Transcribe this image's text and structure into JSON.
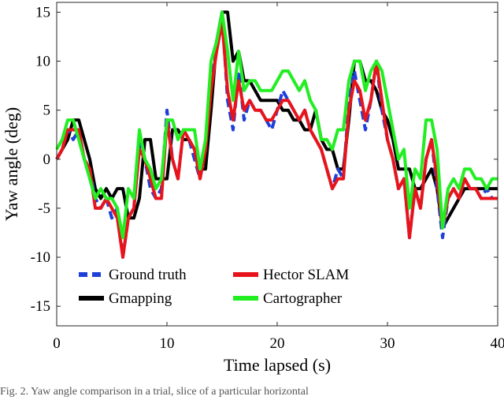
{
  "caption": "Fig. 2. Yaw angle comparison in a trial, slice of a particular horizontal",
  "chart_data": {
    "type": "line",
    "xlabel": "Time lapsed (s)",
    "ylabel": "Yaw angle (deg)",
    "xlim": [
      0,
      40
    ],
    "ylim": [
      -17,
      16
    ],
    "xticks": [
      0,
      10,
      20,
      30,
      40
    ],
    "yticks": [
      -15,
      -10,
      -5,
      0,
      5,
      10,
      15
    ],
    "grid": false,
    "legend_position": "bottom-left",
    "legend_columns": 2,
    "series": [
      {
        "name": "Ground truth",
        "color": "#1f3fd9",
        "dash": "dashed",
        "x": [
          0,
          0.5,
          1,
          1.5,
          2,
          2.5,
          3,
          3.5,
          4,
          4.5,
          5,
          5.5,
          6,
          6.5,
          7,
          7.5,
          8,
          8.5,
          9,
          9.5,
          10,
          10.5,
          11,
          11.5,
          12,
          12.5,
          13,
          13.5,
          14,
          14.5,
          15,
          15.5,
          16,
          16.5,
          17,
          17.5,
          18,
          18.5,
          19,
          19.5,
          20,
          20.5,
          21,
          21.5,
          22,
          22.5,
          23,
          23.5,
          24,
          24.5,
          25,
          25.5,
          26,
          26.5,
          27,
          27.5,
          28,
          28.5,
          29,
          29.5,
          30,
          30.5,
          31,
          31.5,
          32,
          32.5,
          33,
          33.5,
          34,
          34.5,
          35,
          35.5,
          36,
          36.5,
          37,
          37.5,
          38,
          38.5,
          39,
          39.5,
          40
        ],
        "y": [
          0,
          1,
          3,
          2,
          3,
          0,
          -1,
          -4,
          -5,
          -4,
          -6,
          -5,
          -10,
          -6,
          -5,
          2,
          0,
          -3,
          -4,
          -3,
          5,
          0,
          -2,
          3,
          2,
          0,
          -2,
          1,
          8,
          11,
          15,
          6,
          3,
          9,
          4,
          6,
          5,
          5,
          4,
          3,
          5,
          7,
          6,
          5,
          4,
          5,
          3,
          2,
          1,
          -1,
          -3,
          -1,
          -2,
          6,
          9,
          6,
          3,
          6,
          10,
          5,
          2,
          0,
          -3,
          -2,
          -8,
          -3,
          -5,
          0,
          2,
          -3,
          -8,
          -4,
          -3,
          -4,
          -2,
          -3,
          -3,
          -4,
          -3,
          -4,
          -4
        ]
      },
      {
        "name": "Gmapping",
        "color": "#000000",
        "dash": "solid",
        "x": [
          0,
          0.5,
          1,
          1.5,
          2,
          2.5,
          3,
          3.5,
          4,
          4.5,
          5,
          5.5,
          6,
          6.5,
          7,
          7.5,
          8,
          8.5,
          9,
          9.5,
          10,
          10.5,
          11,
          11.5,
          12,
          12.5,
          13,
          13.5,
          14,
          14.5,
          15,
          15.5,
          16,
          16.5,
          17,
          17.5,
          18,
          18.5,
          19,
          19.5,
          20,
          20.5,
          21,
          21.5,
          22,
          22.5,
          23,
          23.5,
          24,
          24.5,
          25,
          25.5,
          26,
          26.5,
          27,
          27.5,
          28,
          28.5,
          29,
          29.5,
          30,
          30.5,
          31,
          31.5,
          32,
          32.5,
          33,
          33.5,
          34,
          34.5,
          35,
          35.5,
          36,
          36.5,
          37,
          37.5,
          38,
          38.5,
          39,
          39.5,
          40
        ],
        "y": [
          0,
          1,
          2,
          4,
          4,
          2,
          0,
          -3,
          -4,
          -3,
          -4,
          -3,
          -3,
          -6,
          -6,
          -4,
          2,
          2,
          -2,
          -2,
          -2,
          3,
          3,
          2,
          2,
          1,
          -1,
          -1,
          5,
          12,
          15,
          15,
          10,
          11,
          8,
          8,
          7,
          6,
          6,
          6,
          6,
          5,
          5,
          4,
          4,
          3,
          3,
          5,
          2,
          1,
          1,
          -1,
          -1,
          4,
          10,
          10,
          8,
          8,
          7,
          5,
          4,
          2,
          -1,
          -1,
          -1,
          -3,
          -3,
          -2,
          -1,
          -3,
          -7,
          -6,
          -5,
          -4,
          -3,
          -3,
          -3,
          -3,
          -3,
          -3,
          -3
        ]
      },
      {
        "name": "Hector SLAM",
        "color": "#e8141b",
        "dash": "solid",
        "x": [
          0,
          0.5,
          1,
          1.5,
          2,
          2.5,
          3,
          3.5,
          4,
          4.5,
          5,
          5.5,
          6,
          6.5,
          7,
          7.5,
          8,
          8.5,
          9,
          9.5,
          10,
          10.5,
          11,
          11.5,
          12,
          12.5,
          13,
          13.5,
          14,
          14.5,
          15,
          15.5,
          16,
          16.5,
          17,
          17.5,
          18,
          18.5,
          19,
          19.5,
          20,
          20.5,
          21,
          21.5,
          22,
          22.5,
          23,
          23.5,
          24,
          24.5,
          25,
          25.5,
          26,
          26.5,
          27,
          27.5,
          28,
          28.5,
          29,
          29.5,
          30,
          30.5,
          31,
          31.5,
          32,
          32.5,
          33,
          33.5,
          34,
          34.5,
          35,
          35.5,
          36,
          36.5,
          37,
          37.5,
          38,
          38.5,
          39,
          39.5,
          40
        ],
        "y": [
          0,
          1,
          3,
          3,
          3,
          0,
          -1,
          -5,
          -5,
          -4,
          -5,
          -6,
          -10,
          -6,
          -5,
          1,
          0,
          -2,
          -4,
          -4,
          4,
          0,
          -2,
          3,
          2,
          1,
          -2,
          1,
          7,
          11,
          14,
          7,
          4,
          8,
          5,
          6,
          5,
          5,
          4,
          4,
          5,
          6,
          6,
          5,
          4,
          5,
          3,
          2,
          1,
          -1,
          -3,
          -2,
          -2,
          5,
          8,
          7,
          4,
          6,
          10,
          6,
          2,
          0,
          -3,
          -2,
          -8,
          -3,
          -5,
          0,
          2,
          -2,
          -7,
          -4,
          -3,
          -4,
          -2,
          -3,
          -3,
          -4,
          -4,
          -4,
          -4
        ]
      },
      {
        "name": "Cartographer",
        "color": "#22ee22",
        "dash": "solid",
        "x": [
          0,
          0.5,
          1,
          1.5,
          2,
          2.5,
          3,
          3.5,
          4,
          4.5,
          5,
          5.5,
          6,
          6.5,
          7,
          7.5,
          8,
          8.5,
          9,
          9.5,
          10,
          10.5,
          11,
          11.5,
          12,
          12.5,
          13,
          13.5,
          14,
          14.5,
          15,
          15.5,
          16,
          16.5,
          17,
          17.5,
          18,
          18.5,
          19,
          19.5,
          20,
          20.5,
          21,
          21.5,
          22,
          22.5,
          23,
          23.5,
          24,
          24.5,
          25,
          25.5,
          26,
          26.5,
          27,
          27.5,
          28,
          28.5,
          29,
          29.5,
          30,
          30.5,
          31,
          31.5,
          32,
          32.5,
          33,
          33.5,
          34,
          34.5,
          35,
          35.5,
          36,
          36.5,
          37,
          37.5,
          38,
          38.5,
          39,
          39.5,
          40
        ],
        "y": [
          1,
          2,
          4,
          4,
          2,
          0,
          -2,
          -4,
          -3,
          -4,
          -4,
          -5,
          -8,
          -3,
          -4,
          3,
          0,
          -1,
          -3,
          -2,
          4,
          4,
          2,
          3,
          3,
          3,
          -1,
          2,
          10,
          12,
          15,
          11,
          6,
          11,
          7,
          8,
          8,
          7,
          7,
          7,
          8,
          9,
          9,
          8,
          7,
          8,
          6,
          5,
          2,
          2,
          1,
          3,
          3,
          8,
          10,
          10,
          7,
          9,
          10,
          9,
          6,
          3,
          0,
          1,
          -5,
          -1,
          -2,
          4,
          4,
          1,
          -7,
          -3,
          -2,
          -3,
          -1,
          -1,
          -2,
          -2,
          -3,
          -2,
          -2
        ]
      }
    ]
  }
}
